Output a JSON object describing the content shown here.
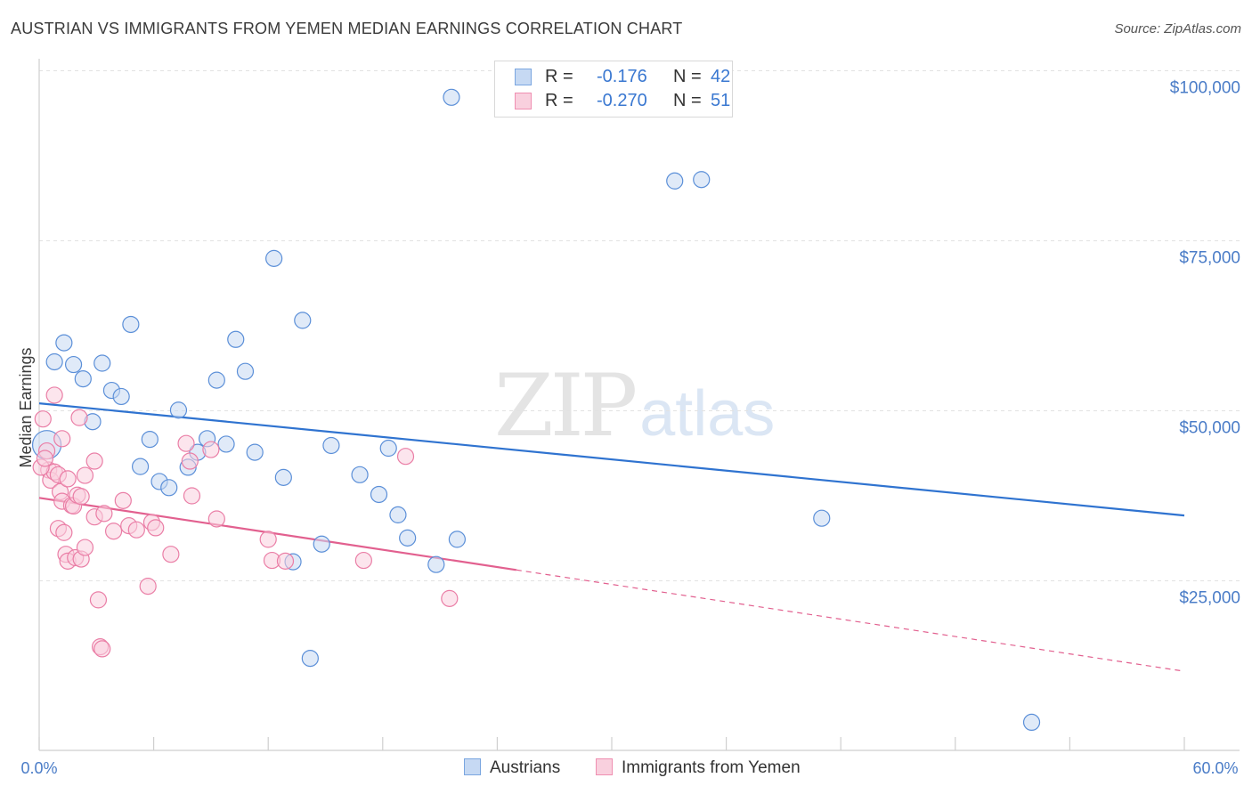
{
  "title": "AUSTRIAN VS IMMIGRANTS FROM YEMEN MEDIAN EARNINGS CORRELATION CHART",
  "source": "Source: ZipAtlas.com",
  "watermark": {
    "zip": "ZIP",
    "atlas": "atlas"
  },
  "legend": {
    "rows": [
      {
        "r_label": "R =",
        "r_value": "-0.176",
        "n_label": "N =",
        "n_value": "42",
        "color": "#7aa6e0",
        "fill": "#c6d9f3"
      },
      {
        "r_label": "R =",
        "r_value": "-0.270",
        "n_label": "N =",
        "n_value": "51",
        "color": "#ef8fb1",
        "fill": "#f9d0de"
      }
    ]
  },
  "bottom_legend": [
    {
      "label": "Austrians",
      "color": "#7aa6e0",
      "fill": "#c6d9f3"
    },
    {
      "label": "Immigrants from Yemen",
      "color": "#ef8fb1",
      "fill": "#f9d0de"
    }
  ],
  "chart_data": {
    "type": "scatter",
    "title": "AUSTRIAN VS IMMIGRANTS FROM YEMEN MEDIAN EARNINGS CORRELATION CHART",
    "xlabel": "",
    "ylabel": "Median Earnings",
    "xlim": [
      0,
      60
    ],
    "ylim": [
      0,
      105000
    ],
    "x_tick_labels": [
      "0.0%",
      "60.0%"
    ],
    "y_ticks": [
      25000,
      50000,
      75000,
      100000
    ],
    "y_tick_labels": [
      "$25,000",
      "$50,000",
      "$75,000",
      "$100,000"
    ],
    "grid": true,
    "legend_position": "top-center",
    "series": [
      {
        "name": "Austrians",
        "color": "#5b8fd8",
        "fill": "#c6d9f3",
        "line_color": "#2f73d0",
        "trend": {
          "x": [
            0,
            60
          ],
          "y": [
            51100,
            34600
          ],
          "dashed_x": null
        },
        "points": [
          [
            0.4,
            45000
          ],
          [
            0.8,
            57200
          ],
          [
            1.3,
            60000
          ],
          [
            1.8,
            56800
          ],
          [
            2.3,
            54700
          ],
          [
            2.8,
            48400
          ],
          [
            3.3,
            57000
          ],
          [
            3.8,
            53000
          ],
          [
            4.3,
            52100
          ],
          [
            4.8,
            62700
          ],
          [
            5.3,
            41800
          ],
          [
            5.8,
            45800
          ],
          [
            6.3,
            39600
          ],
          [
            6.8,
            38700
          ],
          [
            7.3,
            50100
          ],
          [
            7.8,
            41700
          ],
          [
            8.3,
            43900
          ],
          [
            8.8,
            45900
          ],
          [
            9.3,
            54500
          ],
          [
            9.8,
            45100
          ],
          [
            10.3,
            60500
          ],
          [
            10.8,
            55800
          ],
          [
            11.3,
            43900
          ],
          [
            12.3,
            72400
          ],
          [
            12.8,
            40200
          ],
          [
            13.3,
            27800
          ],
          [
            13.8,
            63300
          ],
          [
            14.2,
            13600
          ],
          [
            14.8,
            30400
          ],
          [
            15.3,
            44900
          ],
          [
            16.8,
            40600
          ],
          [
            17.8,
            37700
          ],
          [
            18.3,
            44500
          ],
          [
            18.8,
            34700
          ],
          [
            19.3,
            31300
          ],
          [
            20.8,
            27400
          ],
          [
            21.6,
            96100
          ],
          [
            21.9,
            31100
          ],
          [
            33.3,
            83800
          ],
          [
            34.7,
            84000
          ],
          [
            41.0,
            34200
          ],
          [
            52.0,
            4200
          ]
        ]
      },
      {
        "name": "Immigrants from Yemen",
        "color": "#ea7ea6",
        "fill": "#f9d0de",
        "line_color": "#e2608f",
        "trend": {
          "x": [
            0,
            25
          ],
          "y": [
            37200,
            26600
          ],
          "dashed_x": [
            25,
            60
          ],
          "dashed_y": [
            26600,
            11700
          ]
        },
        "points": [
          [
            0.2,
            48800
          ],
          [
            0.4,
            44100
          ],
          [
            0.5,
            41300
          ],
          [
            0.6,
            39800
          ],
          [
            0.8,
            41000
          ],
          [
            0.8,
            52300
          ],
          [
            1.0,
            40600
          ],
          [
            1.0,
            32700
          ],
          [
            1.1,
            38100
          ],
          [
            1.2,
            36700
          ],
          [
            1.2,
            45900
          ],
          [
            1.3,
            32100
          ],
          [
            1.4,
            28900
          ],
          [
            1.5,
            27900
          ],
          [
            1.5,
            40000
          ],
          [
            1.7,
            36100
          ],
          [
            1.8,
            36000
          ],
          [
            1.9,
            28400
          ],
          [
            2.0,
            37600
          ],
          [
            2.1,
            49000
          ],
          [
            2.2,
            37400
          ],
          [
            2.2,
            28200
          ],
          [
            2.4,
            40500
          ],
          [
            2.4,
            29900
          ],
          [
            2.9,
            42600
          ],
          [
            2.9,
            34400
          ],
          [
            3.1,
            22200
          ],
          [
            3.2,
            15300
          ],
          [
            3.3,
            15000
          ],
          [
            3.4,
            34900
          ],
          [
            3.9,
            32300
          ],
          [
            4.4,
            36800
          ],
          [
            4.7,
            33100
          ],
          [
            5.1,
            32500
          ],
          [
            5.7,
            24200
          ],
          [
            5.9,
            33600
          ],
          [
            6.1,
            32800
          ],
          [
            6.9,
            28900
          ],
          [
            7.7,
            45200
          ],
          [
            7.9,
            42600
          ],
          [
            8.0,
            37500
          ],
          [
            9.0,
            44300
          ],
          [
            9.3,
            34100
          ],
          [
            12.0,
            31100
          ],
          [
            12.2,
            28000
          ],
          [
            12.9,
            27900
          ],
          [
            17.0,
            28000
          ],
          [
            19.2,
            43300
          ],
          [
            21.5,
            22400
          ],
          [
            0.1,
            41700
          ],
          [
            0.3,
            43000
          ]
        ]
      }
    ]
  }
}
